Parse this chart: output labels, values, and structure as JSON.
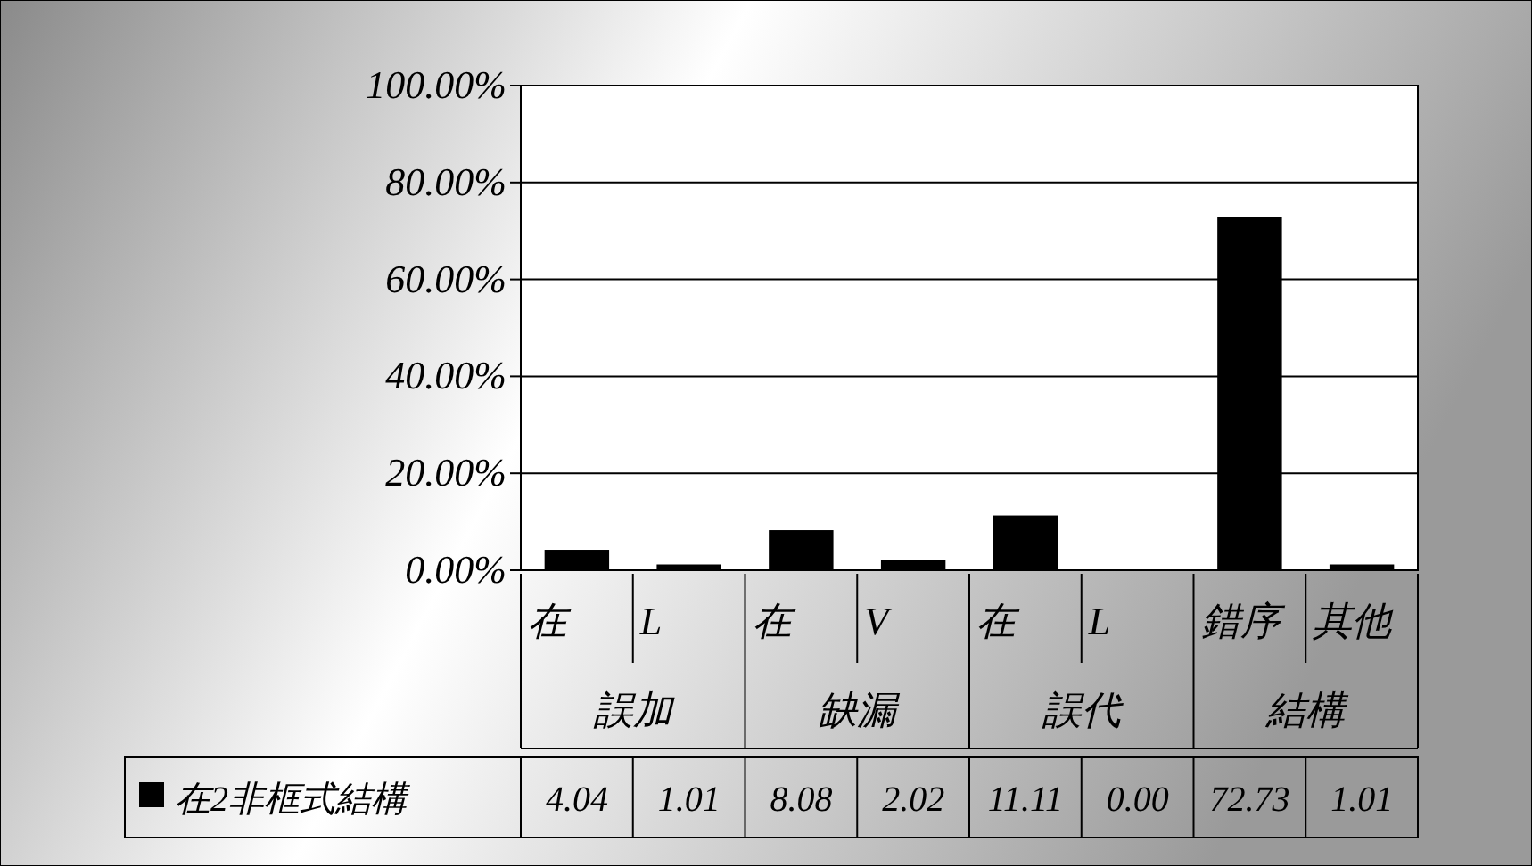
{
  "chart_data": {
    "type": "bar",
    "categories": [
      "在",
      "L",
      "在",
      "V",
      "在",
      "L",
      "錯序",
      "其他"
    ],
    "annotations": [
      "誤加",
      "缺漏",
      "誤代",
      "結構"
    ],
    "series": [
      {
        "name": "在2非框式結構",
        "color": "#000000",
        "values": [
          4.04,
          1.01,
          8.08,
          2.02,
          11.11,
          0.0,
          72.73,
          1.01
        ],
        "value_labels": [
          "4.04",
          "1.01",
          "8.08",
          "2.02",
          "11.11",
          "0.00",
          "72.73",
          "1.01"
        ]
      }
    ],
    "ylim": [
      0,
      100
    ],
    "yticks": [
      {
        "value": 0,
        "label": "0.00%"
      },
      {
        "value": 20,
        "label": "20.00%"
      },
      {
        "value": 40,
        "label": "40.00%"
      },
      {
        "value": 60,
        "label": "60.00%"
      },
      {
        "value": 80,
        "label": "80.00%"
      },
      {
        "value": 100,
        "label": "100.00%"
      }
    ],
    "grid": "y",
    "legend": "bottom"
  }
}
